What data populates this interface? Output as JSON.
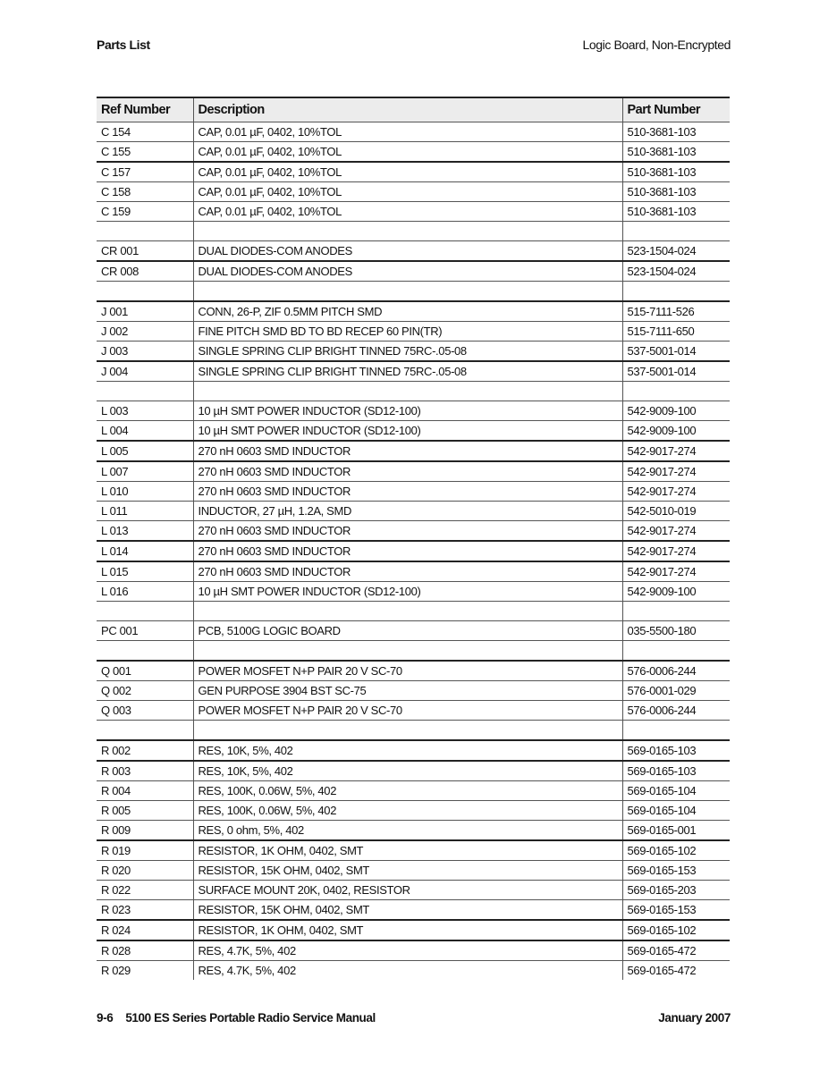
{
  "header": {
    "section": "Parts List",
    "subtitle": "Logic Board, Non-Encrypted"
  },
  "table": {
    "columns": [
      "Ref Number",
      "Description",
      "Part Number"
    ],
    "rows": [
      [
        "C 154",
        "CAP, 0.01 µF, 0402, 10%TOL",
        "510-3681-103"
      ],
      [
        "C 155",
        "CAP, 0.01 µF, 0402, 10%TOL",
        "510-3681-103"
      ],
      [
        "C 157",
        "CAP, 0.01 µF, 0402, 10%TOL",
        "510-3681-103"
      ],
      [
        "C 158",
        "CAP, 0.01 µF, 0402, 10%TOL",
        "510-3681-103"
      ],
      [
        "C 159",
        "CAP, 0.01 µF, 0402, 10%TOL",
        "510-3681-103"
      ],
      [
        "",
        "",
        ""
      ],
      [
        "CR 001",
        "DUAL DIODES-COM ANODES",
        "523-1504-024"
      ],
      [
        "CR 008",
        "DUAL DIODES-COM ANODES",
        "523-1504-024"
      ],
      [
        "",
        "",
        ""
      ],
      [
        "J 001",
        "CONN, 26-P, ZIF 0.5MM PITCH SMD",
        "515-7111-526"
      ],
      [
        "J 002",
        "FINE PITCH SMD BD TO BD RECEP 60 PIN(TR)",
        "515-7111-650"
      ],
      [
        "J 003",
        "SINGLE SPRING CLIP BRIGHT TINNED 75RC-.05-08",
        "537-5001-014"
      ],
      [
        "J 004",
        "SINGLE SPRING CLIP BRIGHT TINNED 75RC-.05-08",
        "537-5001-014"
      ],
      [
        "",
        "",
        ""
      ],
      [
        "L 003",
        "10 µH SMT POWER INDUCTOR (SD12-100)",
        "542-9009-100"
      ],
      [
        "L 004",
        "10 µH SMT POWER INDUCTOR (SD12-100)",
        "542-9009-100"
      ],
      [
        "L 005",
        "270 nH 0603 SMD INDUCTOR",
        "542-9017-274"
      ],
      [
        "L 007",
        "270 nH 0603 SMD INDUCTOR",
        "542-9017-274"
      ],
      [
        "L 010",
        "270 nH 0603 SMD INDUCTOR",
        "542-9017-274"
      ],
      [
        "L 011",
        "INDUCTOR, 27 µH, 1.2A, SMD",
        "542-5010-019"
      ],
      [
        "L 013",
        "270 nH 0603 SMD INDUCTOR",
        "542-9017-274"
      ],
      [
        "L 014",
        "270 nH 0603 SMD INDUCTOR",
        "542-9017-274"
      ],
      [
        "L 015",
        "270 nH 0603 SMD INDUCTOR",
        "542-9017-274"
      ],
      [
        "L 016",
        "10 µH SMT POWER INDUCTOR (SD12-100)",
        "542-9009-100"
      ],
      [
        "",
        "",
        ""
      ],
      [
        "PC 001",
        "PCB, 5100G LOGIC BOARD",
        "035-5500-180"
      ],
      [
        "",
        "",
        ""
      ],
      [
        "Q 001",
        "POWER MOSFET N+P PAIR 20 V SC-70",
        "576-0006-244"
      ],
      [
        "Q 002",
        "GEN PURPOSE 3904 BST SC-75",
        "576-0001-029"
      ],
      [
        "Q 003",
        "POWER MOSFET N+P PAIR 20 V SC-70",
        "576-0006-244"
      ],
      [
        "",
        "",
        ""
      ],
      [
        "R 002",
        "RES, 10K, 5%, 402",
        "569-0165-103"
      ],
      [
        "R 003",
        "RES, 10K, 5%, 402",
        "569-0165-103"
      ],
      [
        "R 004",
        "RES, 100K, 0.06W, 5%, 402",
        "569-0165-104"
      ],
      [
        "R 005",
        "RES, 100K, 0.06W, 5%, 402",
        "569-0165-104"
      ],
      [
        "R 009",
        "RES, 0 ohm, 5%, 402",
        "569-0165-001"
      ],
      [
        "R 019",
        "RESISTOR, 1K OHM, 0402, SMT",
        "569-0165-102"
      ],
      [
        "R 020",
        "RESISTOR, 15K OHM, 0402, SMT",
        "569-0165-153"
      ],
      [
        "R 022",
        "SURFACE MOUNT 20K, 0402, RESISTOR",
        "569-0165-203"
      ],
      [
        "R 023",
        "RESISTOR, 15K OHM, 0402, SMT",
        "569-0165-153"
      ],
      [
        "R 024",
        "RESISTOR, 1K OHM, 0402, SMT",
        "569-0165-102"
      ],
      [
        "R 028",
        "RES, 4.7K, 5%, 402",
        "569-0165-472"
      ],
      [
        "R 029",
        "RES, 4.7K, 5%, 402",
        "569-0165-472"
      ]
    ]
  },
  "footer": {
    "page": "9-6",
    "manual": "5100 ES Series Portable Radio Service Manual",
    "date": "January 2007"
  }
}
